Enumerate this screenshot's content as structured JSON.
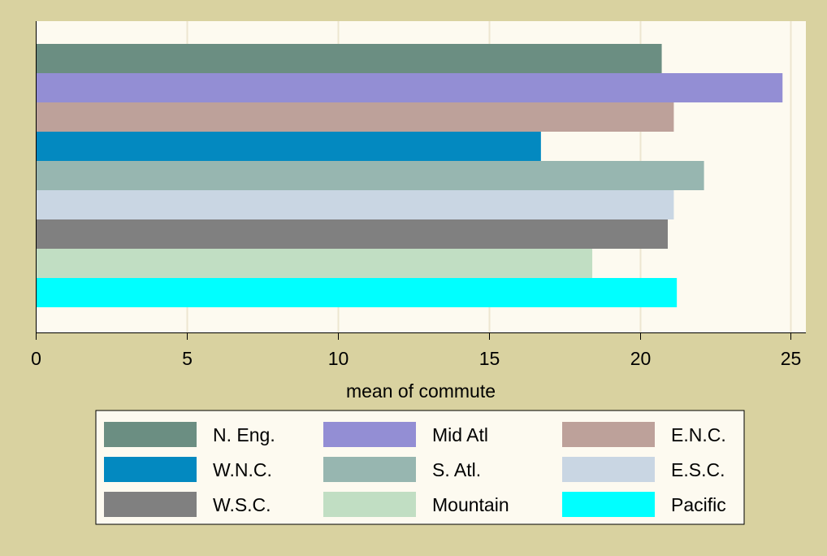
{
  "chart_data": {
    "type": "bar",
    "orientation": "horizontal",
    "xlabel": "mean of commute",
    "xlim": [
      0,
      25.5
    ],
    "xticks": [
      0,
      5,
      10,
      15,
      20,
      25
    ],
    "grid": "vertical",
    "legend_position": "bottom",
    "series": [
      {
        "name": "N. Eng.",
        "value": 20.7,
        "color": "#6b8e82"
      },
      {
        "name": "Mid Atl",
        "value": 24.7,
        "color": "#938ed4"
      },
      {
        "name": "E.N.C.",
        "value": 21.1,
        "color": "#bda19a"
      },
      {
        "name": "W.N.C.",
        "value": 16.7,
        "color": "#0389c0"
      },
      {
        "name": "S. Atl.",
        "value": 22.1,
        "color": "#97b6b0"
      },
      {
        "name": "E.S.C.",
        "value": 21.1,
        "color": "#c9d6e3"
      },
      {
        "name": "W.S.C.",
        "value": 20.9,
        "color": "#808080"
      },
      {
        "name": "Mountain",
        "value": 18.4,
        "color": "#c1dec3"
      },
      {
        "name": "Pacific",
        "value": 21.2,
        "color": "#00ffff"
      }
    ]
  },
  "colors": {
    "background": "#d9d2a0",
    "plot_area": "#fdfaf0",
    "grid": "#ede6d0",
    "axis": "#000000"
  }
}
